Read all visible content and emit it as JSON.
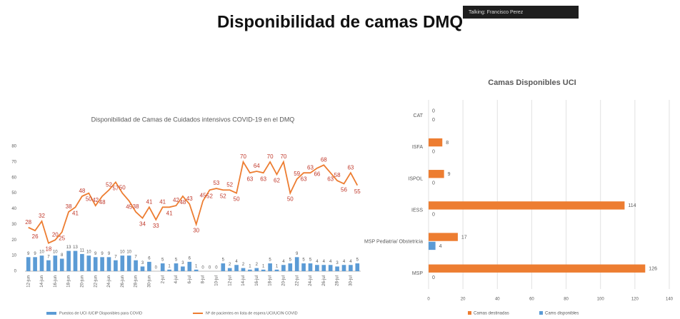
{
  "title": "Disponibilidad de camas DMQ",
  "overlay": "Talking: Francisco Perez",
  "chart_data": [
    {
      "type": "combo",
      "title": "Disponibilidad de Camas de Cuidados intensivos COVID-19 en el DMQ",
      "categories": [
        "12-jun",
        null,
        "14-jun",
        null,
        "16-jun",
        null,
        "18-jun",
        null,
        "20-jun",
        null,
        "22-jun",
        null,
        "24-jun",
        null,
        "26-jun",
        null,
        "28-jun",
        null,
        "30-jun",
        null,
        "2-jul",
        null,
        "4-jul",
        null,
        "6-jul",
        null,
        "8-jul",
        null,
        "10-jul",
        null,
        "12-jul",
        null,
        "14-jul",
        null,
        "16-jul",
        null,
        "18-jul",
        null,
        "20-jul",
        null,
        "22-jul",
        null,
        "24-jul",
        null,
        "26-jul",
        null,
        "28-jul",
        null,
        "30-jul",
        null
      ],
      "series": [
        {
          "name": "Puestos de UCI /UCIP Disponibles para COVID",
          "kind": "bar",
          "color": "#5b9bd5",
          "values": [
            9,
            9,
            10,
            7,
            10,
            8,
            13,
            13,
            11,
            10,
            9,
            9,
            9,
            7,
            10,
            10,
            7,
            3,
            6,
            0,
            5,
            1,
            5,
            3,
            6,
            1,
            0,
            0,
            0,
            5,
            2,
            4,
            2,
            1,
            2,
            1,
            5,
            1,
            4,
            5,
            9,
            5,
            5,
            4,
            4,
            4,
            3,
            4,
            4,
            5
          ]
        },
        {
          "name": "Nº de pacientes en lista de espera UCI/UCIN COVID",
          "kind": "line",
          "color": "#ed7d31",
          "values": [
            28,
            26,
            32,
            18,
            20,
            25,
            38,
            41,
            48,
            50,
            42,
            48,
            52,
            57,
            50,
            45,
            38,
            34,
            41,
            33,
            41,
            41,
            42,
            48,
            43,
            30,
            45,
            52,
            53,
            52,
            52,
            50,
            70,
            63,
            64,
            63,
            70,
            62,
            70,
            50,
            59,
            63,
            63,
            66,
            68,
            63,
            58,
            56,
            63,
            55
          ]
        }
      ],
      "ylim": [
        0,
        80
      ],
      "yticks": [
        0,
        10,
        20,
        30,
        40,
        50,
        60,
        70,
        80
      ],
      "grid": false
    },
    {
      "type": "hbar",
      "title": "Camas Disponibles UCI",
      "categories": [
        "CAT",
        "ISFA",
        "ISPOL",
        "IESS",
        "MSP Pediatria/ Obstetricia",
        "MSP"
      ],
      "series": [
        {
          "name": "Camas destinadas",
          "color": "#ed7d31",
          "values": [
            0,
            8,
            9,
            114,
            17,
            126
          ]
        },
        {
          "name": "Cams disponibles",
          "color": "#5b9bd5",
          "values": [
            0,
            0,
            0,
            0,
            4,
            0
          ]
        }
      ],
      "xlim": [
        0,
        140
      ],
      "xticks": [
        0,
        20,
        40,
        60,
        80,
        100,
        120,
        140
      ],
      "grid": true
    }
  ]
}
